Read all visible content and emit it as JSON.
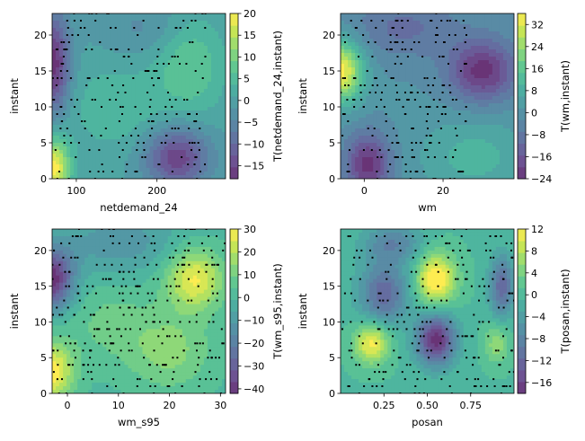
{
  "chart_data": [
    {
      "type": "heatmap",
      "subtype": "filled-contour-with-scatter",
      "xlabel": "netdemand_24",
      "ylabel": "instant",
      "colorbar_label": "T(netdemand_24,instant)",
      "xlim": [
        70,
        285
      ],
      "ylim": [
        0,
        23
      ],
      "xticks": [
        100,
        200
      ],
      "yticks": [
        0,
        5,
        10,
        15,
        20
      ],
      "cbar_range": [
        -18,
        20
      ],
      "cbar_ticks": [
        -15,
        -10,
        -5,
        0,
        5,
        10,
        15,
        20
      ],
      "surface": [
        {
          "x": 72,
          "y": 16,
          "value": -18,
          "spread": [
            14,
            5
          ]
        },
        {
          "x": 72,
          "y": 1.5,
          "value": 20,
          "spread": [
            14,
            3
          ]
        },
        {
          "x": 225,
          "y": 3,
          "value": -16,
          "spread": [
            28,
            3
          ]
        },
        {
          "x": 240,
          "y": 16,
          "value": 8,
          "spread": [
            30,
            5
          ]
        },
        {
          "x": 150,
          "y": 10,
          "value": 5,
          "spread": [
            40,
            4
          ]
        },
        {
          "x": 190,
          "y": 21,
          "value": -4,
          "spread": [
            40,
            3
          ]
        }
      ],
      "scatter": {
        "x_range": [
          70,
          260
        ],
        "y_range": [
          0,
          23
        ],
        "n": 230
      }
    },
    {
      "type": "heatmap",
      "subtype": "filled-contour-with-scatter",
      "xlabel": "wm",
      "ylabel": "instant",
      "colorbar_label": "T(wm,instant)",
      "xlim": [
        -6,
        38
      ],
      "ylim": [
        0,
        23
      ],
      "xticks": [
        0,
        20
      ],
      "yticks": [
        0,
        5,
        10,
        15,
        20
      ],
      "cbar_range": [
        -24,
        36
      ],
      "cbar_ticks": [
        -24,
        -16,
        -8,
        0,
        8,
        16,
        24,
        32
      ],
      "surface": [
        {
          "x": -6,
          "y": 15,
          "value": 36,
          "spread": [
            4,
            3
          ]
        },
        {
          "x": 30,
          "y": 15,
          "value": -24,
          "spread": [
            6,
            3
          ]
        },
        {
          "x": 1,
          "y": 2,
          "value": -24,
          "spread": [
            4,
            3
          ]
        },
        {
          "x": 10,
          "y": 21,
          "value": -10,
          "spread": [
            10,
            3
          ]
        },
        {
          "x": 28,
          "y": 3,
          "value": 10,
          "spread": [
            10,
            4
          ]
        }
      ],
      "scatter": {
        "x_range": [
          -6,
          26
        ],
        "y_range": [
          0,
          23
        ],
        "n": 230
      }
    },
    {
      "type": "heatmap",
      "subtype": "filled-contour-with-scatter",
      "xlabel": "wm_s95",
      "ylabel": "instant",
      "colorbar_label": "T(wm_s95,instant)",
      "xlim": [
        -3,
        31
      ],
      "ylim": [
        0,
        23
      ],
      "xticks": [
        0,
        10,
        20,
        30
      ],
      "yticks": [
        0,
        5,
        10,
        15,
        20
      ],
      "cbar_range": [
        -42,
        30
      ],
      "cbar_ticks": [
        -40,
        -30,
        -20,
        -10,
        0,
        10,
        20,
        30
      ],
      "surface": [
        {
          "x": -3,
          "y": 16,
          "value": -42,
          "spread": [
            3,
            3
          ]
        },
        {
          "x": -3,
          "y": 3,
          "value": 30,
          "spread": [
            3,
            3
          ]
        },
        {
          "x": 25,
          "y": 16,
          "value": 28,
          "spread": [
            4,
            3
          ]
        },
        {
          "x": 20,
          "y": 6,
          "value": 14,
          "spread": [
            6,
            4
          ]
        },
        {
          "x": 10,
          "y": 21,
          "value": -12,
          "spread": [
            8,
            3
          ]
        },
        {
          "x": 8,
          "y": 10,
          "value": 8,
          "spread": [
            6,
            4
          ]
        }
      ],
      "scatter": {
        "x_range": [
          -3,
          31
        ],
        "y_range": [
          0,
          23
        ],
        "n": 320
      }
    },
    {
      "type": "heatmap",
      "subtype": "filled-contour-with-scatter",
      "xlabel": "posan",
      "ylabel": "instant",
      "colorbar_label": "T(posan,instant)",
      "xlim": [
        0,
        1
      ],
      "ylim": [
        0,
        23
      ],
      "xticks": [
        0.25,
        0.5,
        0.75
      ],
      "xtick_labels": [
        "0.25",
        "0.50",
        "0.75"
      ],
      "yticks": [
        0,
        5,
        10,
        15,
        20
      ],
      "cbar_range": [
        -18,
        12
      ],
      "cbar_ticks": [
        -16,
        -12,
        -8,
        -4,
        0,
        4,
        8,
        12
      ],
      "surface": [
        {
          "x": 0.55,
          "y": 16,
          "value": 14,
          "spread": [
            0.08,
            2.5
          ]
        },
        {
          "x": 0.18,
          "y": 7,
          "value": 12,
          "spread": [
            0.07,
            2
          ]
        },
        {
          "x": 0.55,
          "y": 7.5,
          "value": -18,
          "spread": [
            0.08,
            2.5
          ]
        },
        {
          "x": 0.25,
          "y": 14,
          "value": -12,
          "spread": [
            0.1,
            3
          ]
        },
        {
          "x": 0.93,
          "y": 15,
          "value": -12,
          "spread": [
            0.05,
            3
          ]
        },
        {
          "x": 0.9,
          "y": 7,
          "value": 6,
          "spread": [
            0.05,
            2
          ]
        },
        {
          "x": 0.3,
          "y": 21,
          "value": -8,
          "spread": [
            0.12,
            2
          ]
        }
      ],
      "scatter": {
        "x_range": [
          0,
          1
        ],
        "y_range": [
          0,
          23
        ],
        "n": 260
      }
    }
  ]
}
